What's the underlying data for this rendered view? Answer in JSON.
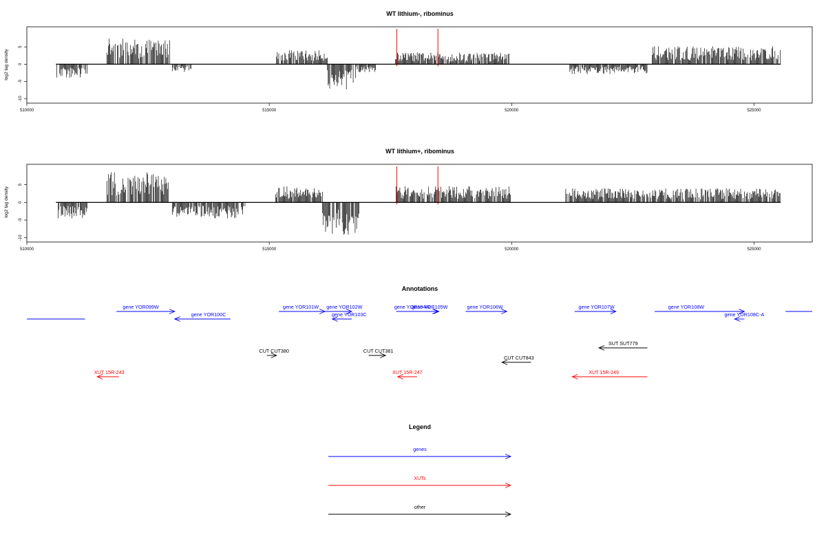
{
  "chart_data": [
    {
      "type": "bar",
      "title": "WT lithium-, ribominus",
      "ylabel": "log2 tag density",
      "xlim": [
        510000,
        526200
      ],
      "ylim": [
        -10,
        10
      ],
      "x_ticks": [
        510000,
        515000,
        520000,
        525000
      ],
      "x_tick_labels": [
        "510000",
        "515000",
        "520000",
        "525000"
      ],
      "y_ticks": [
        -10,
        -5,
        0,
        5
      ],
      "y_tick_labels": [
        "-10",
        "-5",
        "0",
        "5"
      ],
      "markers": [
        517630,
        518480
      ],
      "segments": [
        {
          "start": 510600,
          "end": 511250,
          "amp": -3.5
        },
        {
          "start": 511650,
          "end": 512950,
          "amp": 6.5
        },
        {
          "start": 513000,
          "end": 513400,
          "amp": -2
        },
        {
          "start": 515150,
          "end": 516200,
          "amp": 3.5
        },
        {
          "start": 516200,
          "end": 516800,
          "amp": -6.5
        },
        {
          "start": 516800,
          "end": 517200,
          "amp": -2
        },
        {
          "start": 517600,
          "end": 519950,
          "amp": 3
        },
        {
          "start": 521200,
          "end": 522800,
          "amp": -2.5
        },
        {
          "start": 522900,
          "end": 525550,
          "amp": 4.5
        }
      ]
    },
    {
      "type": "bar",
      "title": "WT lithium+, ribominus",
      "ylabel": "log2 tag density",
      "xlim": [
        510000,
        526200
      ],
      "ylim": [
        -10,
        10
      ],
      "x_ticks": [
        510000,
        515000,
        520000,
        525000
      ],
      "x_tick_labels": [
        "510000",
        "515000",
        "520000",
        "525000"
      ],
      "y_ticks": [
        -10,
        -5,
        0,
        5
      ],
      "y_tick_labels": [
        "-10",
        "-5",
        "0",
        "5"
      ],
      "markers": [
        517630,
        518480
      ],
      "segments": [
        {
          "start": 510600,
          "end": 511250,
          "amp": -4
        },
        {
          "start": 511650,
          "end": 512950,
          "amp": 7.5
        },
        {
          "start": 513000,
          "end": 514500,
          "amp": -4
        },
        {
          "start": 515100,
          "end": 516100,
          "amp": 4
        },
        {
          "start": 516100,
          "end": 516850,
          "amp": -8
        },
        {
          "start": 517600,
          "end": 520000,
          "amp": 4
        },
        {
          "start": 521100,
          "end": 525550,
          "amp": 3.5
        }
      ]
    }
  ],
  "annotations": {
    "title": "Annotations",
    "items": [
      {
        "label": "gene YOR099W",
        "color": "#0000ff",
        "dir": "right",
        "start": 511850,
        "end": 513050,
        "row": 0,
        "label_x": 512350
      },
      {
        "label": "gene YOR100C",
        "color": "#0000ff",
        "dir": "left",
        "start": 513050,
        "end": 514200,
        "row": 1,
        "label_x": 513750
      },
      {
        "label": "gene YOR101W",
        "color": "#0000ff",
        "dir": "right",
        "start": 515200,
        "end": 516150,
        "row": 0,
        "label_x": 515650
      },
      {
        "label": "gene YOR102W",
        "color": "#0000ff",
        "dir": "right",
        "start": 516150,
        "end": 516700,
        "row": 0,
        "label_x": 516550
      },
      {
        "label": "gene YOR103C",
        "color": "#0000ff",
        "dir": "left",
        "start": 516300,
        "end": 516700,
        "row": 1,
        "label_x": 516650
      },
      {
        "label": "gene YOR104W",
        "color": "#0000ff",
        "dir": "right",
        "start": 517620,
        "end": 518500,
        "row": 0,
        "label_x": 517950
      },
      {
        "label": "gene YOR105W",
        "color": "#0000ff",
        "dir": "right",
        "start": 518050,
        "end": 518480,
        "row": 0,
        "label_x": 518310
      },
      {
        "label": "gene YOR106W",
        "color": "#0000ff",
        "dir": "right",
        "start": 519050,
        "end": 519900,
        "row": 0,
        "label_x": 519450
      },
      {
        "label": "gene YOR107W",
        "color": "#0000ff",
        "dir": "right",
        "start": 521300,
        "end": 522150,
        "row": 0,
        "label_x": 521750
      },
      {
        "label": "gene YOR108W",
        "color": "#0000ff",
        "dir": "right",
        "start": 522950,
        "end": 524800,
        "row": 0,
        "label_x": 523600
      },
      {
        "label": "gene YOR108C-A",
        "color": "#0000ff",
        "dir": "left",
        "start": 524600,
        "end": 524800,
        "row": 1,
        "label_x": 524800
      }
    ],
    "lines": [
      {
        "color": "#0000ff",
        "start": 510000,
        "end": 511200,
        "row": 1
      },
      {
        "color": "#0000ff",
        "start": 525650,
        "end": 526200,
        "row": 0
      }
    ],
    "others": [
      {
        "label": "CUT CUT380",
        "color": "#000000",
        "dir": "right",
        "start": 514950,
        "end": 515150,
        "row": 2,
        "label_x": 515100
      },
      {
        "label": "CUT CUT381",
        "color": "#000000",
        "dir": "right",
        "start": 517050,
        "end": 517400,
        "row": 2,
        "label_x": 517250
      },
      {
        "label": "CUT CUT843",
        "color": "#000000",
        "dir": "left",
        "start": 519800,
        "end": 520400,
        "row": 3,
        "label_x": 520150
      },
      {
        "label": "SUT SUT779",
        "color": "#000000",
        "dir": "left",
        "start": 521800,
        "end": 522800,
        "row": 4,
        "label_x": 522300
      },
      {
        "label": "XUT 15R-243",
        "color": "#ff0000",
        "dir": "left",
        "start": 511450,
        "end": 511900,
        "row": 5,
        "label_x": 511700
      },
      {
        "label": "XUT 15R-247",
        "color": "#ff0000",
        "dir": "left",
        "start": 517650,
        "end": 518050,
        "row": 5,
        "label_x": 517850
      },
      {
        "label": "XUT 15R-249",
        "color": "#ff0000",
        "dir": "left",
        "start": 521250,
        "end": 522800,
        "row": 5,
        "label_x": 521900
      }
    ]
  },
  "legend": {
    "title": "Legend",
    "items": [
      {
        "label": "genes",
        "color": "#0000ff"
      },
      {
        "label": "XUTs",
        "color": "#ff0000"
      },
      {
        "label": "other",
        "color": "#000000"
      }
    ]
  }
}
